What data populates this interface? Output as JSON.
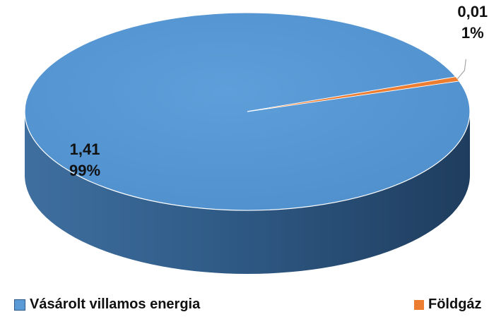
{
  "chart_data": {
    "type": "pie",
    "style": "3d",
    "slices": [
      {
        "name": "Vásárolt villamos energia",
        "value": 1.41,
        "value_label": "1,41",
        "percent_label": "99%",
        "color": "#5b9bd5"
      },
      {
        "name": "Földgáz",
        "value": 0.01,
        "value_label": "0,01",
        "percent_label": "1%",
        "color": "#ed7d31"
      }
    ],
    "legend": {
      "position": "bottom"
    }
  }
}
